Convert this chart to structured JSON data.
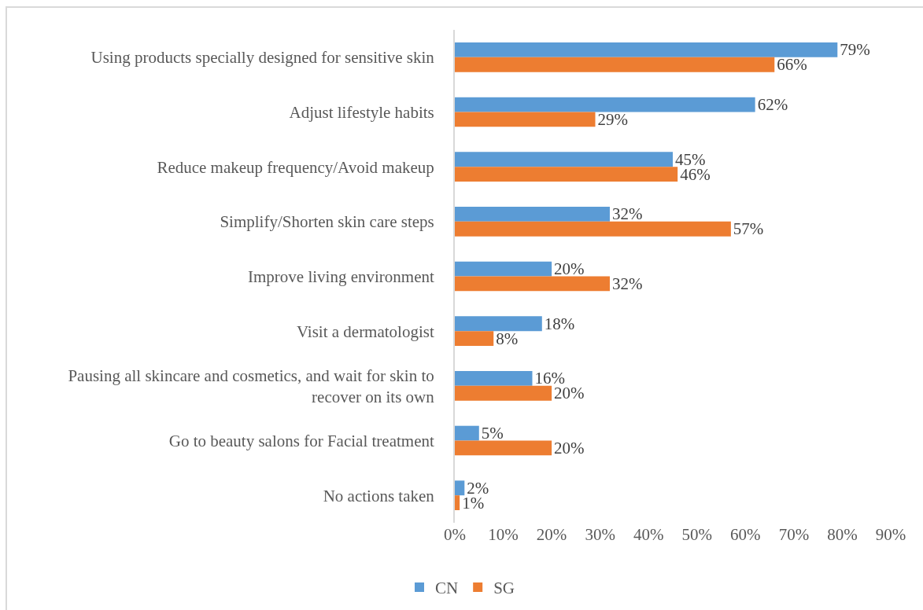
{
  "chart_data": {
    "type": "bar",
    "orientation": "horizontal",
    "categories": [
      "Using products specially designed for sensitive skin",
      "Adjust lifestyle habits",
      "Reduce makeup frequency/Avoid makeup",
      "Simplify/Shorten skin care steps",
      "Improve living environment",
      "Visit a dermatologist",
      "Pausing all skincare and cosmetics, and wait for skin to recover on its own",
      "Go to beauty salons for Facial treatment",
      "No actions taken"
    ],
    "series": [
      {
        "name": "CN",
        "color": "#5b9bd5",
        "values": [
          79,
          62,
          45,
          32,
          20,
          18,
          16,
          5,
          2
        ],
        "value_labels": [
          "79%",
          "62%",
          "45%",
          "32%",
          "20%",
          "18%",
          "16%",
          "5%",
          "2%"
        ]
      },
      {
        "name": "SG",
        "color": "#ed7d31",
        "values": [
          66,
          29,
          46,
          57,
          32,
          8,
          20,
          20,
          1
        ],
        "value_labels": [
          "66%",
          "29%",
          "46%",
          "57%",
          "32%",
          "8%",
          "20%",
          "20%",
          "1%"
        ]
      }
    ],
    "xlim": [
      0,
      90
    ],
    "xticks": [
      {
        "value": 0,
        "label": "0%"
      },
      {
        "value": 10,
        "label": "10%"
      },
      {
        "value": 20,
        "label": "20%"
      },
      {
        "value": 30,
        "label": "30%"
      },
      {
        "value": 40,
        "label": "40%"
      },
      {
        "value": 50,
        "label": "50%"
      },
      {
        "value": 60,
        "label": "60%"
      },
      {
        "value": 70,
        "label": "70%"
      },
      {
        "value": 80,
        "label": "80%"
      },
      {
        "value": 90,
        "label": "90%"
      }
    ],
    "legend": "bottom"
  }
}
